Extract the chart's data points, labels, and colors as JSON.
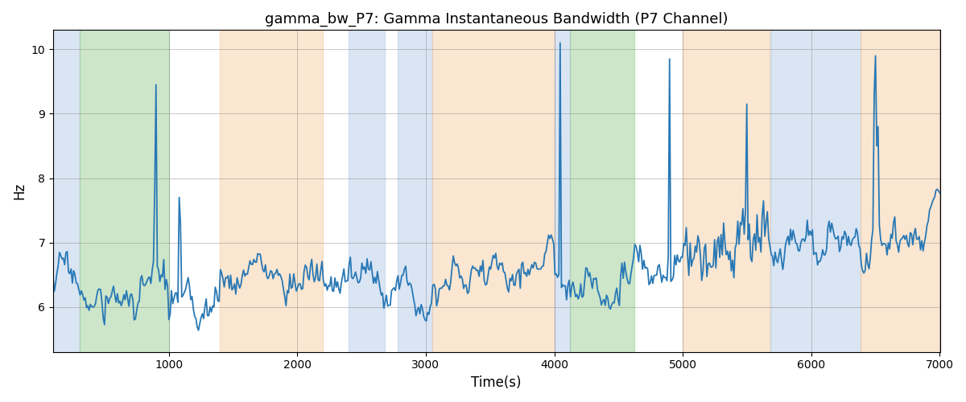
{
  "title": "gamma_bw_P7: Gamma Instantaneous Bandwidth (P7 Channel)",
  "xlabel": "Time(s)",
  "ylabel": "Hz",
  "xlim": [
    100,
    7000
  ],
  "ylim": [
    5.3,
    10.3
  ],
  "yticks": [
    6,
    7,
    8,
    9,
    10
  ],
  "xticks": [
    1000,
    2000,
    3000,
    4000,
    5000,
    6000,
    7000
  ],
  "line_color": "#2878b5",
  "line_width": 1.3,
  "bg_bands": [
    {
      "xmin": 100,
      "xmax": 310,
      "color": "#aec6e8",
      "alpha": 0.45
    },
    {
      "xmin": 310,
      "xmax": 1000,
      "color": "#90c98a",
      "alpha": 0.45
    },
    {
      "xmin": 1400,
      "xmax": 2200,
      "color": "#f5c99a",
      "alpha": 0.45
    },
    {
      "xmin": 2400,
      "xmax": 2680,
      "color": "#aec6e8",
      "alpha": 0.45
    },
    {
      "xmin": 2780,
      "xmax": 3050,
      "color": "#aec6e8",
      "alpha": 0.45
    },
    {
      "xmin": 3050,
      "xmax": 4000,
      "color": "#f5c99a",
      "alpha": 0.45
    },
    {
      "xmin": 4000,
      "xmax": 4120,
      "color": "#aec6e8",
      "alpha": 0.45
    },
    {
      "xmin": 4120,
      "xmax": 4620,
      "color": "#90c98a",
      "alpha": 0.45
    },
    {
      "xmin": 5000,
      "xmax": 5680,
      "color": "#f5c99a",
      "alpha": 0.45
    },
    {
      "xmin": 5680,
      "xmax": 6380,
      "color": "#aec6e8",
      "alpha": 0.45
    },
    {
      "xmin": 6380,
      "xmax": 7000,
      "color": "#f5c99a",
      "alpha": 0.45
    }
  ],
  "figsize": [
    12,
    5
  ],
  "dpi": 100
}
